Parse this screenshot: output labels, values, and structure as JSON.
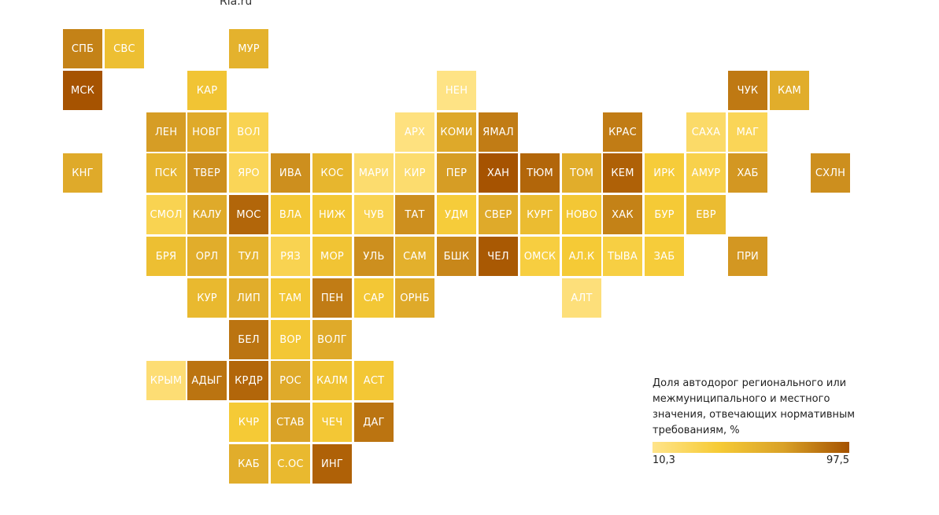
{
  "source": "Ria.ru",
  "legend": {
    "title": "Доля автодорог регионального или межмуниципального и местного значения, отвечающих нормативным требованиям, %",
    "min_label": "10,3",
    "max_label": "97,5",
    "min": 10.3,
    "max": 97.5,
    "colors": [
      "#ffe48a",
      "#f6cb36",
      "#d9a127",
      "#a55200"
    ]
  },
  "regions": [
    {
      "code": "СПБ",
      "col": 0,
      "row": 0,
      "value": 80
    },
    {
      "code": "СВС",
      "col": 1,
      "row": 0,
      "value": 48
    },
    {
      "code": "МУР",
      "col": 4,
      "row": 0,
      "value": 57
    },
    {
      "code": "МСК",
      "col": 0,
      "row": 1,
      "value": 97
    },
    {
      "code": "КАР",
      "col": 3,
      "row": 1,
      "value": 44
    },
    {
      "code": "НЕН",
      "col": 9,
      "row": 1,
      "value": 12
    },
    {
      "code": "ЧУК",
      "col": 16,
      "row": 1,
      "value": 83
    },
    {
      "code": "КАМ",
      "col": 17,
      "row": 1,
      "value": 60
    },
    {
      "code": "ЛЕН",
      "col": 2,
      "row": 2,
      "value": 70
    },
    {
      "code": "НОВГ",
      "col": 3,
      "row": 2,
      "value": 62
    },
    {
      "code": "ВОЛ",
      "col": 4,
      "row": 2,
      "value": 30
    },
    {
      "code": "АРХ",
      "col": 8,
      "row": 2,
      "value": 14
    },
    {
      "code": "КОМИ",
      "col": 9,
      "row": 2,
      "value": 63
    },
    {
      "code": "ЯМАЛ",
      "col": 10,
      "row": 2,
      "value": 82
    },
    {
      "code": "КРАС",
      "col": 13,
      "row": 2,
      "value": 82
    },
    {
      "code": "САХА",
      "col": 15,
      "row": 2,
      "value": 22
    },
    {
      "code": "МАГ",
      "col": 16,
      "row": 2,
      "value": 28
    },
    {
      "code": "КНГ",
      "col": 0,
      "row": 3,
      "value": 62
    },
    {
      "code": "ПСК",
      "col": 2,
      "row": 3,
      "value": 55
    },
    {
      "code": "ТВЕР",
      "col": 3,
      "row": 3,
      "value": 75
    },
    {
      "code": "ЯРО",
      "col": 4,
      "row": 3,
      "value": 28
    },
    {
      "code": "ИВА",
      "col": 5,
      "row": 3,
      "value": 75
    },
    {
      "code": "КОС",
      "col": 6,
      "row": 3,
      "value": 54
    },
    {
      "code": "МАРИ",
      "col": 7,
      "row": 3,
      "value": 20
    },
    {
      "code": "КИР",
      "col": 8,
      "row": 3,
      "value": 20
    },
    {
      "code": "ПЕР",
      "col": 9,
      "row": 3,
      "value": 70
    },
    {
      "code": "ХАН",
      "col": 10,
      "row": 3,
      "value": 97
    },
    {
      "code": "ТЮМ",
      "col": 11,
      "row": 3,
      "value": 90
    },
    {
      "code": "ТОМ",
      "col": 12,
      "row": 3,
      "value": 60
    },
    {
      "code": "КЕМ",
      "col": 13,
      "row": 3,
      "value": 92
    },
    {
      "code": "ИРК",
      "col": 14,
      "row": 3,
      "value": 38
    },
    {
      "code": "АМУР",
      "col": 15,
      "row": 3,
      "value": 32
    },
    {
      "code": "ХАБ",
      "col": 16,
      "row": 3,
      "value": 72
    },
    {
      "code": "СХЛН",
      "col": 18,
      "row": 3,
      "value": 75
    },
    {
      "code": "СМОЛ",
      "col": 2,
      "row": 4,
      "value": 30
    },
    {
      "code": "КАЛУ",
      "col": 3,
      "row": 4,
      "value": 62
    },
    {
      "code": "МОС",
      "col": 4,
      "row": 4,
      "value": 90
    },
    {
      "code": "ВЛА",
      "col": 5,
      "row": 4,
      "value": 42
    },
    {
      "code": "НИЖ",
      "col": 6,
      "row": 4,
      "value": 42
    },
    {
      "code": "ЧУВ",
      "col": 7,
      "row": 4,
      "value": 30
    },
    {
      "code": "ТАТ",
      "col": 8,
      "row": 4,
      "value": 75
    },
    {
      "code": "УДМ",
      "col": 9,
      "row": 4,
      "value": 38
    },
    {
      "code": "СВЕР",
      "col": 10,
      "row": 4,
      "value": 62
    },
    {
      "code": "КУРГ",
      "col": 11,
      "row": 4,
      "value": 50
    },
    {
      "code": "НОВО",
      "col": 12,
      "row": 4,
      "value": 42
    },
    {
      "code": "ХАК",
      "col": 13,
      "row": 4,
      "value": 80
    },
    {
      "code": "БУР",
      "col": 14,
      "row": 4,
      "value": 40
    },
    {
      "code": "ЕВР",
      "col": 15,
      "row": 4,
      "value": 50
    },
    {
      "code": "БРЯ",
      "col": 2,
      "row": 5,
      "value": 48
    },
    {
      "code": "ОРЛ",
      "col": 3,
      "row": 5,
      "value": 60
    },
    {
      "code": "ТУЛ",
      "col": 4,
      "row": 5,
      "value": 57
    },
    {
      "code": "РЯЗ",
      "col": 5,
      "row": 5,
      "value": 30
    },
    {
      "code": "МОР",
      "col": 6,
      "row": 5,
      "value": 44
    },
    {
      "code": "УЛЬ",
      "col": 7,
      "row": 5,
      "value": 75
    },
    {
      "code": "САМ",
      "col": 8,
      "row": 5,
      "value": 58
    },
    {
      "code": "БШК",
      "col": 9,
      "row": 5,
      "value": 78
    },
    {
      "code": "ЧЕЛ",
      "col": 10,
      "row": 5,
      "value": 95
    },
    {
      "code": "ОМСК",
      "col": 11,
      "row": 5,
      "value": 36
    },
    {
      "code": "АЛ.К",
      "col": 12,
      "row": 5,
      "value": 40
    },
    {
      "code": "ТЫВА",
      "col": 13,
      "row": 5,
      "value": 35
    },
    {
      "code": "ЗАБ",
      "col": 14,
      "row": 5,
      "value": 38
    },
    {
      "code": "ПРИ",
      "col": 16,
      "row": 5,
      "value": 72
    },
    {
      "code": "КУР",
      "col": 3,
      "row": 6,
      "value": 52
    },
    {
      "code": "ЛИП",
      "col": 4,
      "row": 6,
      "value": 60
    },
    {
      "code": "ТАМ",
      "col": 5,
      "row": 6,
      "value": 43
    },
    {
      "code": "ПЕН",
      "col": 6,
      "row": 6,
      "value": 82
    },
    {
      "code": "САР",
      "col": 7,
      "row": 6,
      "value": 42
    },
    {
      "code": "ОРНБ",
      "col": 8,
      "row": 6,
      "value": 62
    },
    {
      "code": "АЛТ",
      "col": 12,
      "row": 6,
      "value": 16
    },
    {
      "code": "БЕЛ",
      "col": 4,
      "row": 7,
      "value": 85
    },
    {
      "code": "ВОР",
      "col": 5,
      "row": 7,
      "value": 42
    },
    {
      "code": "ВОЛГ",
      "col": 6,
      "row": 7,
      "value": 62
    },
    {
      "code": "КРЫМ",
      "col": 2,
      "row": 8,
      "value": 18
    },
    {
      "code": "АДЫГ",
      "col": 3,
      "row": 8,
      "value": 85
    },
    {
      "code": "КРДР",
      "col": 4,
      "row": 8,
      "value": 90
    },
    {
      "code": "РОС",
      "col": 5,
      "row": 8,
      "value": 62
    },
    {
      "code": "КАЛМ",
      "col": 6,
      "row": 8,
      "value": 45
    },
    {
      "code": "АСТ",
      "col": 7,
      "row": 8,
      "value": 42
    },
    {
      "code": "КЧР",
      "col": 4,
      "row": 9,
      "value": 40
    },
    {
      "code": "СТАВ",
      "col": 5,
      "row": 9,
      "value": 68
    },
    {
      "code": "ЧЕЧ",
      "col": 6,
      "row": 9,
      "value": 42
    },
    {
      "code": "ДАГ",
      "col": 7,
      "row": 9,
      "value": 85
    },
    {
      "code": "КАБ",
      "col": 4,
      "row": 10,
      "value": 60
    },
    {
      "code": "С.ОС",
      "col": 5,
      "row": 10,
      "value": 52
    },
    {
      "code": "ИНГ",
      "col": 6,
      "row": 10,
      "value": 92
    }
  ]
}
